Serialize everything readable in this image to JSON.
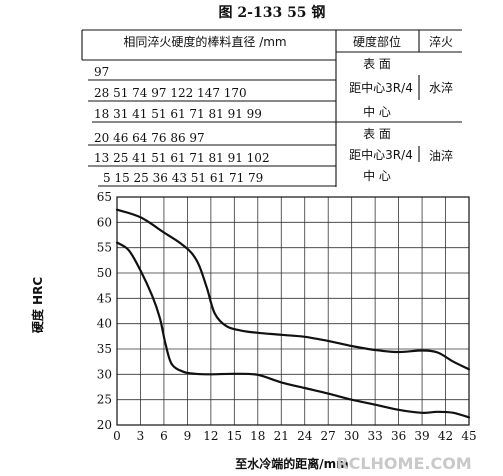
{
  "figure_title": "图 2-133    55 钢",
  "table": {
    "header": {
      "diameter": "相同淬火硬度的棒料直径 /mm",
      "position": "硬度部位",
      "quench": "淬火"
    },
    "rows": [
      {
        "values": "97",
        "position": "表    面"
      },
      {
        "values": "28   51   74   97 122 147 170",
        "position": "距中心3R/4"
      },
      {
        "values": "18   31  41   51   61  71   81  91  99",
        "position": "中      心"
      },
      {
        "values": "20   46   64   76   86  97",
        "position": "表      面"
      },
      {
        "values": "13    25  41   51   61  71    81  91 102",
        "position": "距中心3R/4"
      },
      {
        "values": "5   15   25   36   43   51   61   71   79",
        "position": "中      心"
      }
    ],
    "quench_labels": [
      "水淬",
      "油淬"
    ]
  },
  "watermark": "RCLHOME.COM",
  "chart_data": {
    "type": "line",
    "xlabel": "至水冷端的距离/mm",
    "ylabel": "硬度  HRC",
    "xlim": [
      0,
      45
    ],
    "ylim": [
      20,
      65
    ],
    "x_ticks": [
      0,
      3,
      6,
      9,
      12,
      15,
      18,
      21,
      24,
      27,
      30,
      33,
      36,
      39,
      42,
      45
    ],
    "y_ticks": [
      20,
      25,
      30,
      35,
      40,
      45,
      50,
      55,
      60,
      65
    ],
    "grid": true,
    "series": [
      {
        "values": [
          [
            0,
            62.5
          ],
          [
            3,
            61
          ],
          [
            6,
            58
          ],
          [
            8,
            56
          ],
          [
            9.5,
            54
          ],
          [
            10.5,
            51.5
          ],
          [
            11.5,
            47
          ],
          [
            12.5,
            42
          ],
          [
            14,
            39.5
          ],
          [
            16,
            38.6
          ],
          [
            18,
            38.2
          ],
          [
            21,
            37.8
          ],
          [
            24,
            37.4
          ],
          [
            27,
            36.6
          ],
          [
            30,
            35.6
          ],
          [
            33,
            34.8
          ],
          [
            36,
            34.4
          ],
          [
            39,
            34.7
          ],
          [
            41,
            34.3
          ],
          [
            43,
            32.5
          ],
          [
            45,
            31
          ]
        ]
      },
      {
        "values": [
          [
            0,
            56
          ],
          [
            1.5,
            54.5
          ],
          [
            3,
            50.5
          ],
          [
            4.5,
            45.5
          ],
          [
            5.5,
            41
          ],
          [
            6.2,
            36
          ],
          [
            7,
            32
          ],
          [
            8.5,
            30.5
          ],
          [
            10,
            30.1
          ],
          [
            12,
            30
          ],
          [
            15,
            30.1
          ],
          [
            18,
            29.9
          ],
          [
            21,
            28.4
          ],
          [
            24,
            27.3
          ],
          [
            27,
            26.2
          ],
          [
            30,
            25
          ],
          [
            33,
            24
          ],
          [
            36,
            23
          ],
          [
            39,
            22.4
          ],
          [
            41,
            22.6
          ],
          [
            43,
            22.4
          ],
          [
            45,
            21.5
          ]
        ]
      }
    ]
  }
}
